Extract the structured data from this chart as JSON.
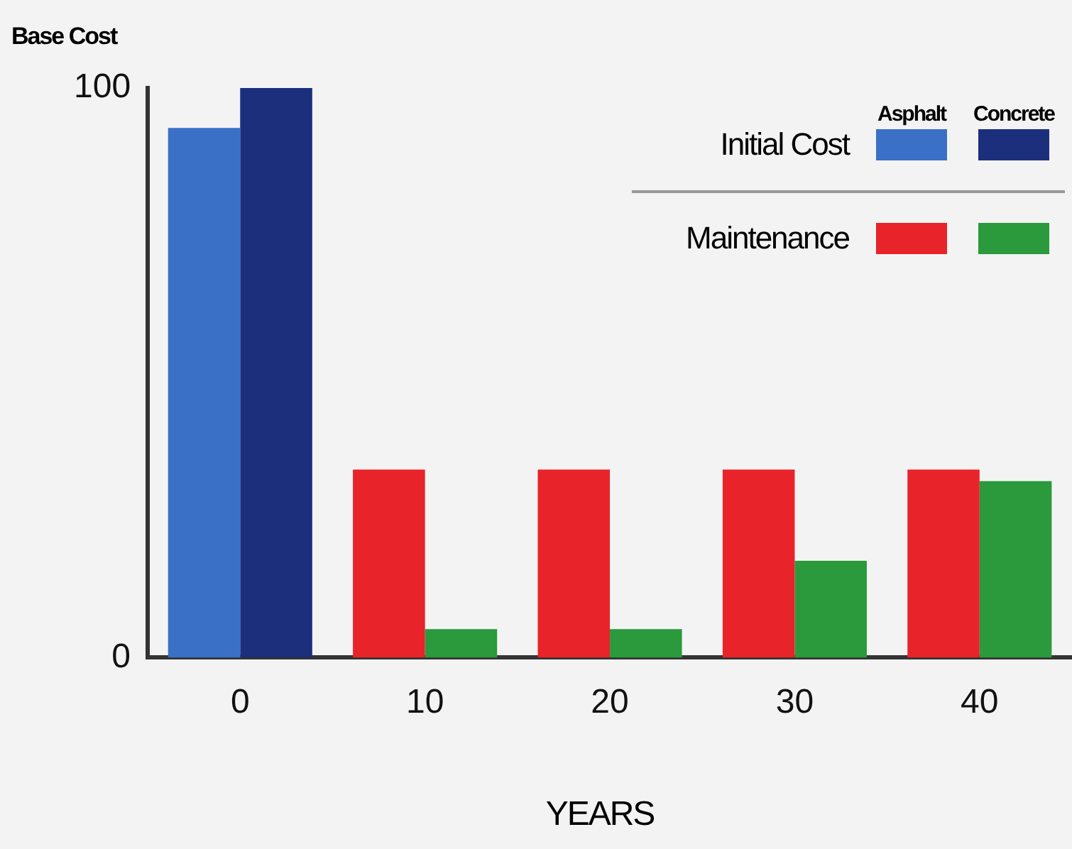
{
  "chart_data": {
    "type": "bar",
    "ylabel": "Base Cost",
    "xlabel": "YEARS",
    "categories": [
      "0",
      "10",
      "20",
      "30",
      "40"
    ],
    "series": [
      {
        "color": "#3a70c6",
        "values": [
          93,
          null,
          null,
          null,
          null
        ]
      },
      {
        "color": "#1b2f7c",
        "values": [
          100,
          null,
          null,
          null,
          null
        ]
      },
      {
        "color": "#e8232a",
        "values": [
          null,
          33,
          33,
          33,
          33
        ]
      },
      {
        "color": "#2a9a3c",
        "values": [
          null,
          5,
          5,
          17,
          31
        ]
      }
    ],
    "annotations": [
      "Asphalt",
      "Concrete",
      "Initial Cost",
      "Maintenance"
    ],
    "ylim": [
      0,
      100
    ],
    "yticks": [
      0,
      100
    ],
    "grid": false
  }
}
